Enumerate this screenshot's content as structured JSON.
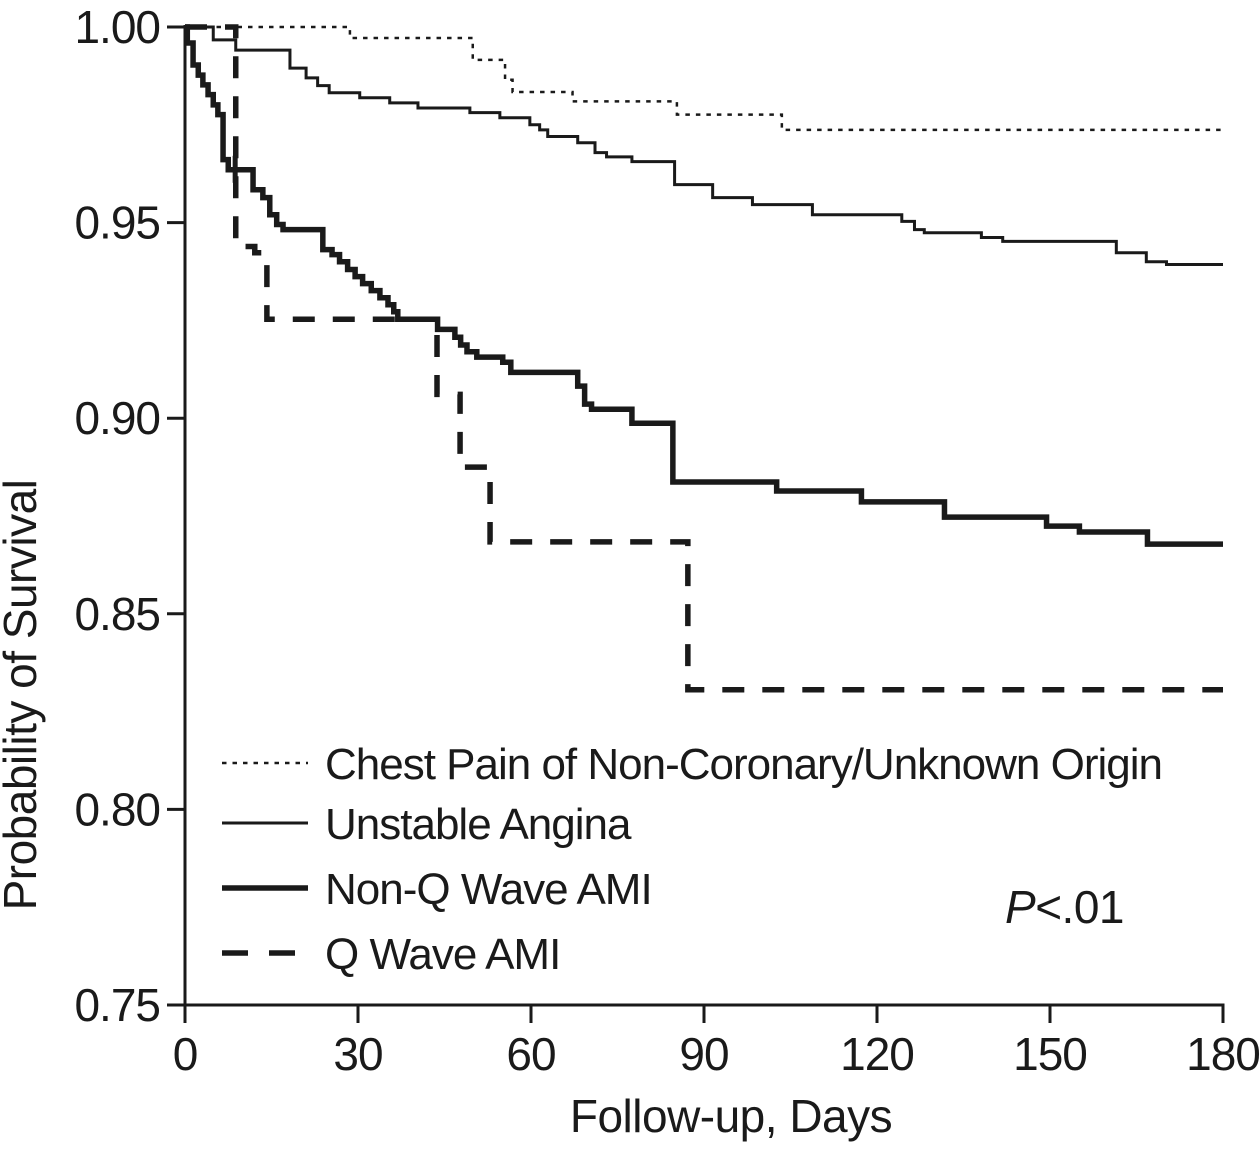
{
  "figure": {
    "background": "#ffffff",
    "ink_color": "#1a1a1a"
  },
  "chart_data": {
    "type": "line",
    "subtype": "kaplan-meier-step-survival",
    "title": "",
    "xlabel": "Follow-up, Days",
    "ylabel": "Probability of Survival",
    "xlim": [
      0,
      180
    ],
    "ylim": [
      0.75,
      1.0
    ],
    "grid": false,
    "legend_position": "inside-lower-left",
    "xticks": [
      {
        "value": 0,
        "label": "0"
      },
      {
        "value": 30,
        "label": "30"
      },
      {
        "value": 60,
        "label": "60"
      },
      {
        "value": 90,
        "label": "90"
      },
      {
        "value": 120,
        "label": "120"
      },
      {
        "value": 150,
        "label": "150"
      },
      {
        "value": 180,
        "label": "180"
      }
    ],
    "yticks": [
      {
        "value": 1.0,
        "label": "1.00"
      },
      {
        "value": 0.95,
        "label": "0.95"
      },
      {
        "value": 0.9,
        "label": "0.90"
      },
      {
        "value": 0.85,
        "label": "0.85"
      },
      {
        "value": 0.8,
        "label": "0.80"
      },
      {
        "value": 0.75,
        "label": "0.75"
      }
    ],
    "annotation": {
      "text_italic": "P",
      "text_rest": "<.01"
    },
    "series": [
      {
        "name": "Chest Pain of Non-Coronary/Unknown Origin",
        "style": "dotted",
        "stroke_width": 2.5,
        "dash": "4.5 6",
        "legend_dash": "4.5 6",
        "points": [
          [
            0,
            1.0
          ],
          [
            28.6,
            0.9972
          ],
          [
            49.9,
            0.9916
          ],
          [
            55.5,
            0.9865
          ],
          [
            56.8,
            0.9834
          ],
          [
            67.2,
            0.981
          ],
          [
            85.3,
            0.9776
          ],
          [
            103.5,
            0.9737
          ],
          [
            180,
            0.9737
          ]
        ]
      },
      {
        "name": "Unstable Angina",
        "style": "solid-thin",
        "stroke_width": 3,
        "dash": "",
        "legend_dash": "",
        "points": [
          [
            0,
            1.0
          ],
          [
            4.9,
            0.9967
          ],
          [
            8.8,
            0.9941
          ],
          [
            18.2,
            0.9895
          ],
          [
            21,
            0.987
          ],
          [
            23,
            0.985
          ],
          [
            25,
            0.9832
          ],
          [
            30.3,
            0.9819
          ],
          [
            35.5,
            0.9806
          ],
          [
            40.4,
            0.9793
          ],
          [
            49.4,
            0.9781
          ],
          [
            54.6,
            0.9768
          ],
          [
            59.8,
            0.975
          ],
          [
            61.5,
            0.9737
          ],
          [
            62.9,
            0.972
          ],
          [
            68.1,
            0.9704
          ],
          [
            71.1,
            0.9679
          ],
          [
            73.1,
            0.9668
          ],
          [
            77.5,
            0.9656
          ],
          [
            84.9,
            0.9597
          ],
          [
            91.5,
            0.9564
          ],
          [
            98.4,
            0.9546
          ],
          [
            108.8,
            0.952
          ],
          [
            124.3,
            0.9503
          ],
          [
            126.5,
            0.9482
          ],
          [
            128.2,
            0.9474
          ],
          [
            138.1,
            0.9462
          ],
          [
            141.8,
            0.9452
          ],
          [
            161.5,
            0.9423
          ],
          [
            166.7,
            0.94
          ],
          [
            170.2,
            0.9393
          ],
          [
            180,
            0.9393
          ]
        ]
      },
      {
        "name": "Non-Q Wave AMI",
        "style": "solid-thick",
        "stroke_width": 5.5,
        "dash": "",
        "legend_dash": "",
        "points": [
          [
            0,
            1.0
          ],
          [
            0.4,
            0.9959
          ],
          [
            1.4,
            0.9903
          ],
          [
            2.3,
            0.9877
          ],
          [
            3.1,
            0.9852
          ],
          [
            4.0,
            0.9827
          ],
          [
            4.9,
            0.9801
          ],
          [
            5.7,
            0.9776
          ],
          [
            6.6,
            0.9661
          ],
          [
            7.5,
            0.9635
          ],
          [
            11.8,
            0.9584
          ],
          [
            13.5,
            0.9564
          ],
          [
            14.7,
            0.952
          ],
          [
            15.9,
            0.9495
          ],
          [
            17.0,
            0.9482
          ],
          [
            23.9,
            0.9431
          ],
          [
            25.5,
            0.9418
          ],
          [
            26.8,
            0.94
          ],
          [
            28.2,
            0.938
          ],
          [
            29.5,
            0.9362
          ],
          [
            30.8,
            0.9344
          ],
          [
            32.3,
            0.9326
          ],
          [
            33.8,
            0.9308
          ],
          [
            35.2,
            0.929
          ],
          [
            36.2,
            0.9272
          ],
          [
            36.9,
            0.9253
          ],
          [
            43.8,
            0.9227
          ],
          [
            46.8,
            0.9207
          ],
          [
            47.8,
            0.9187
          ],
          [
            48.9,
            0.917
          ],
          [
            50.6,
            0.9156
          ],
          [
            55.1,
            0.9143
          ],
          [
            56.5,
            0.9117
          ],
          [
            68.1,
            0.9082
          ],
          [
            69.3,
            0.9036
          ],
          [
            70.5,
            0.9023
          ],
          [
            77.5,
            0.8987
          ],
          [
            84.6,
            0.8837
          ],
          [
            102.6,
            0.8814
          ],
          [
            117.3,
            0.8786
          ],
          [
            131.7,
            0.8747
          ],
          [
            149.4,
            0.8724
          ],
          [
            155.1,
            0.8709
          ],
          [
            166.9,
            0.8678
          ],
          [
            180,
            0.8678
          ]
        ]
      },
      {
        "name": "Q Wave AMI",
        "style": "dashed-thick",
        "stroke_width": 5.5,
        "dash": "22 18",
        "legend_dash": "26 21",
        "points": [
          [
            0,
            1.0
          ],
          [
            8.8,
            0.9439
          ],
          [
            12.1,
            0.9423
          ],
          [
            14.2,
            0.9253
          ],
          [
            43.7,
            0.9061
          ],
          [
            47.7,
            0.8875
          ],
          [
            52.9,
            0.8684
          ],
          [
            87.2,
            0.8306
          ],
          [
            180,
            0.8306
          ]
        ]
      }
    ],
    "censor_marks": [
      {
        "series_index": 2,
        "day": 8.7,
        "probability": 0.9635
      }
    ]
  }
}
